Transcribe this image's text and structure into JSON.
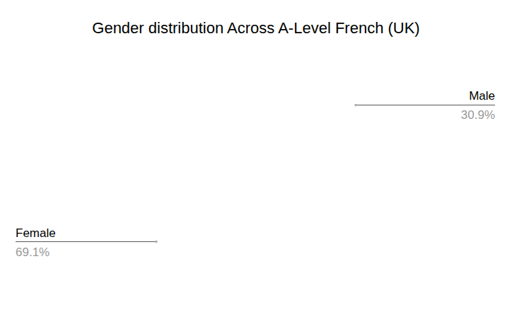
{
  "chart_data": {
    "type": "pie",
    "title": "Gender distribution Across A-Level French (UK)",
    "categories": [
      "Male",
      "Female"
    ],
    "values": [
      30.9,
      69.1
    ],
    "value_labels": [
      "30.9%",
      "69.1%"
    ],
    "colors": [
      "#0b2349",
      "#8b7336"
    ],
    "data_labels": true
  }
}
